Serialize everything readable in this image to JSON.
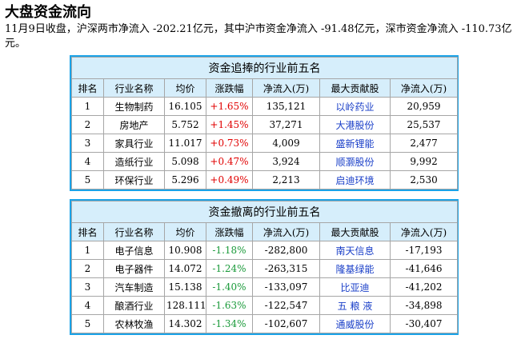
{
  "header": {
    "title": "大盘资金流向",
    "summary": "11月9日收盘，沪深两市净流入 -202.21亿元，其中沪市资金净流入 -91.48亿元，深市资金净流入 -110.73亿元。"
  },
  "colors": {
    "border": "#1aa3e8",
    "header_bg": "#d6eefb",
    "up": "#e10000",
    "down": "#1a9a3a",
    "link": "#1a3fc8"
  },
  "columns": [
    "排名",
    "行业名称",
    "均价",
    "涨跌幅",
    "净流入(万)",
    "最大贡献股",
    "净流入(万)"
  ],
  "inflow": {
    "title": "资金追捧的行业前五名",
    "rows": [
      {
        "rank": "1",
        "industry": "生物制药",
        "price": "16.105",
        "change": "+1.65%",
        "net": "135,121",
        "stock": "以岭药业",
        "stock_net": "20,959"
      },
      {
        "rank": "2",
        "industry": "房地产",
        "price": "5.752",
        "change": "+1.45%",
        "net": "37,271",
        "stock": "大港股份",
        "stock_net": "25,537"
      },
      {
        "rank": "3",
        "industry": "家具行业",
        "price": "11.017",
        "change": "+0.73%",
        "net": "4,009",
        "stock": "盛新锂能",
        "stock_net": "2,477"
      },
      {
        "rank": "4",
        "industry": "造纸行业",
        "price": "5.098",
        "change": "+0.47%",
        "net": "3,924",
        "stock": "顺灏股份",
        "stock_net": "9,992"
      },
      {
        "rank": "5",
        "industry": "环保行业",
        "price": "5.296",
        "change": "+0.49%",
        "net": "2,213",
        "stock": "启迪环境",
        "stock_net": "2,530"
      }
    ]
  },
  "outflow": {
    "title": "资金撤离的行业前五名",
    "rows": [
      {
        "rank": "1",
        "industry": "电子信息",
        "price": "10.908",
        "change": "-1.18%",
        "net": "-282,800",
        "stock": "南天信息",
        "stock_net": "-17,193"
      },
      {
        "rank": "2",
        "industry": "电子器件",
        "price": "14.072",
        "change": "-1.24%",
        "net": "-263,315",
        "stock": "隆基绿能",
        "stock_net": "-41,646"
      },
      {
        "rank": "3",
        "industry": "汽车制造",
        "price": "15.138",
        "change": "-1.40%",
        "net": "-133,097",
        "stock": "比亚迪",
        "stock_net": "-41,202"
      },
      {
        "rank": "4",
        "industry": "酿酒行业",
        "price": "128.111",
        "change": "-1.63%",
        "net": "-122,547",
        "stock": "五 粮 液",
        "stock_net": "-34,898"
      },
      {
        "rank": "5",
        "industry": "农林牧渔",
        "price": "14.302",
        "change": "-1.34%",
        "net": "-102,607",
        "stock": "通威股份",
        "stock_net": "-30,407"
      }
    ]
  }
}
